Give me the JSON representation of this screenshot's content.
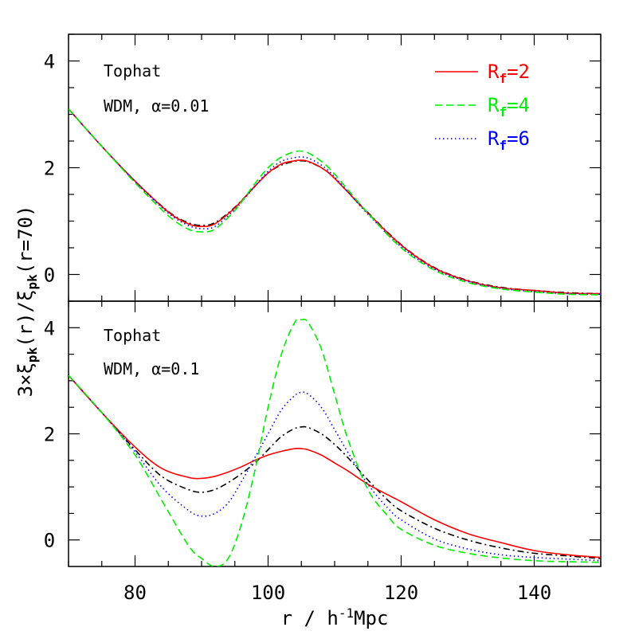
{
  "chart_data": [
    {
      "type": "line",
      "panel": "top",
      "annotations": [
        "Tophat",
        "WDM, α=0.01"
      ],
      "xlim": [
        70,
        150
      ],
      "ylim": [
        -0.5,
        4.5
      ],
      "xticks": [
        80,
        100,
        120,
        140
      ],
      "yticks": [
        0,
        2,
        4
      ],
      "legend": {
        "placement": "top-right",
        "entries": [
          {
            "name": "R_f=2",
            "base": "R",
            "sub": "f",
            "rest": "=2",
            "color": "#ff0000",
            "style": "solid"
          },
          {
            "name": "R_f=4",
            "base": "R",
            "sub": "f",
            "rest": "=4",
            "color": "#00ee00",
            "style": "dashed"
          },
          {
            "name": "R_f=6",
            "base": "R",
            "sub": "f",
            "rest": "=6",
            "color": "#0000ff",
            "style": "dotted"
          }
        ]
      },
      "x": [
        70,
        75,
        80,
        85,
        88,
        90,
        92,
        95,
        98,
        100,
        102,
        104,
        105,
        106,
        108,
        110,
        115,
        120,
        125,
        130,
        135,
        140,
        145,
        150
      ],
      "series": [
        {
          "name": "R_f=2",
          "color": "#ff0000",
          "style": "solid",
          "values": [
            3.1,
            2.4,
            1.75,
            1.17,
            0.95,
            0.9,
            0.95,
            1.25,
            1.65,
            1.9,
            2.07,
            2.13,
            2.14,
            2.12,
            2.0,
            1.8,
            1.15,
            0.55,
            0.12,
            -0.12,
            -0.25,
            -0.3,
            -0.35,
            -0.36
          ]
        },
        {
          "name": "R_f=4",
          "color": "#00ee00",
          "style": "dashed",
          "values": [
            3.1,
            2.4,
            1.72,
            1.1,
            0.85,
            0.8,
            0.85,
            1.2,
            1.7,
            2.0,
            2.2,
            2.3,
            2.31,
            2.28,
            2.12,
            1.88,
            1.15,
            0.5,
            0.08,
            -0.15,
            -0.27,
            -0.33,
            -0.37,
            -0.38
          ]
        },
        {
          "name": "R_f=6",
          "color": "#0000ff",
          "style": "dotted",
          "values": [
            3.1,
            2.4,
            1.74,
            1.15,
            0.92,
            0.86,
            0.9,
            1.22,
            1.65,
            1.93,
            2.12,
            2.19,
            2.2,
            2.18,
            2.05,
            1.83,
            1.13,
            0.52,
            0.1,
            -0.13,
            -0.26,
            -0.32,
            -0.36,
            -0.37
          ]
        },
        {
          "name": "",
          "color": "#000000",
          "style": "dashdot",
          "values": [
            3.1,
            2.4,
            1.75,
            1.18,
            0.97,
            0.92,
            0.97,
            1.26,
            1.65,
            1.9,
            2.05,
            2.12,
            2.13,
            2.11,
            2.0,
            1.8,
            1.16,
            0.56,
            0.13,
            -0.11,
            -0.24,
            -0.3,
            -0.34,
            -0.36
          ]
        }
      ]
    },
    {
      "type": "line",
      "panel": "bottom",
      "annotations": [
        "Tophat",
        "WDM, α=0.1"
      ],
      "xlim": [
        70,
        150
      ],
      "ylim": [
        -0.5,
        4.5
      ],
      "xticks": [
        80,
        100,
        120,
        140
      ],
      "yticks": [
        0,
        2,
        4
      ],
      "x": [
        70,
        75,
        80,
        84,
        88,
        90,
        92,
        94,
        96,
        98,
        100,
        102,
        104,
        105,
        106,
        108,
        110,
        112,
        115,
        118,
        120,
        125,
        130,
        135,
        140,
        145,
        150
      ],
      "series": [
        {
          "name": "R_f=2",
          "color": "#ff0000",
          "style": "solid",
          "values": [
            3.1,
            2.4,
            1.75,
            1.35,
            1.18,
            1.16,
            1.2,
            1.28,
            1.38,
            1.5,
            1.6,
            1.67,
            1.72,
            1.72,
            1.7,
            1.6,
            1.45,
            1.3,
            1.05,
            0.85,
            0.72,
            0.38,
            0.12,
            -0.05,
            -0.2,
            -0.28,
            -0.33
          ]
        },
        {
          "name": "R_f=4",
          "color": "#00ee00",
          "style": "dashed",
          "values": [
            3.1,
            2.4,
            1.6,
            0.75,
            -0.1,
            -0.35,
            -0.5,
            -0.35,
            0.3,
            1.3,
            2.5,
            3.5,
            4.1,
            4.15,
            4.1,
            3.6,
            2.75,
            1.9,
            0.95,
            0.45,
            0.2,
            -0.1,
            -0.25,
            -0.34,
            -0.39,
            -0.41,
            -0.42
          ]
        },
        {
          "name": "R_f=6",
          "color": "#0000ff",
          "style": "dotted",
          "values": [
            3.1,
            2.4,
            1.66,
            1.0,
            0.56,
            0.45,
            0.5,
            0.7,
            1.1,
            1.55,
            2.0,
            2.45,
            2.72,
            2.78,
            2.75,
            2.5,
            2.08,
            1.65,
            1.05,
            0.6,
            0.38,
            0.02,
            -0.17,
            -0.28,
            -0.33,
            -0.36,
            -0.39
          ]
        },
        {
          "name": "",
          "color": "#000000",
          "style": "dashdot",
          "values": [
            3.1,
            2.4,
            1.7,
            1.2,
            0.95,
            0.9,
            0.95,
            1.08,
            1.25,
            1.45,
            1.7,
            1.95,
            2.1,
            2.13,
            2.12,
            2.0,
            1.8,
            1.55,
            1.13,
            0.75,
            0.55,
            0.22,
            0.0,
            -0.15,
            -0.25,
            -0.3,
            -0.35
          ]
        }
      ]
    }
  ],
  "axes": {
    "xlabel": {
      "prefix": "r / h",
      "sup": "-1",
      "suffix": "Mpc"
    },
    "ylabel": {
      "a": "3×ξ",
      "sub1": "pk",
      "b": "(r)/ξ",
      "sub2": "pk",
      "c": "(r=70)"
    }
  }
}
